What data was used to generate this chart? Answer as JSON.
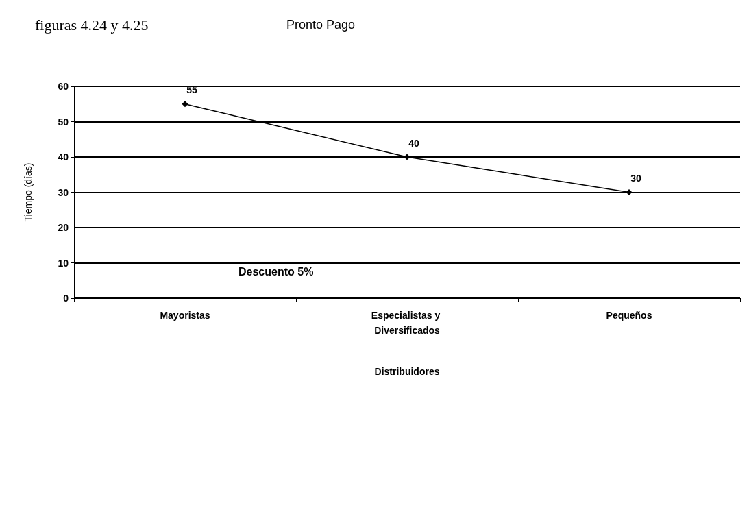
{
  "chart_data": {
    "type": "line",
    "title": "Pronto Pago",
    "subtitle": "figuras 4.24 y 4.25",
    "xlabel": "Distribuidores",
    "ylabel": "Tiempo (días)",
    "categories": [
      "Mayoristas",
      "Especialistas y Diversificados",
      "Pequeños"
    ],
    "series": [
      {
        "color": "#000000",
        "values": [
          55,
          40,
          30
        ]
      }
    ],
    "ylim": [
      0,
      60
    ],
    "yticks": [
      0,
      10,
      20,
      30,
      40,
      50,
      60
    ],
    "grid": "y",
    "marker": "diamond",
    "line_style": "solid",
    "data_labels": true,
    "annotations": [
      "Descuento 5%"
    ]
  }
}
